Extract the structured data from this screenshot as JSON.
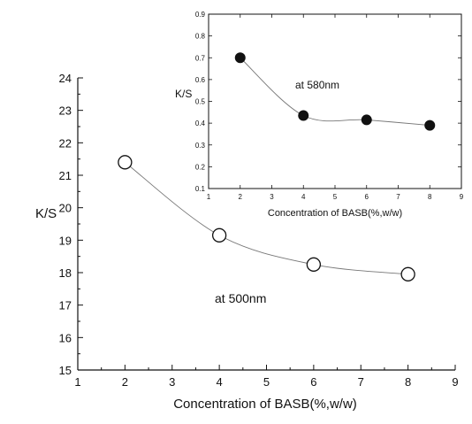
{
  "chart_data": [
    {
      "type": "scatter",
      "xlabel": "Concentration of BASB(%,w/w)",
      "ylabel": "K/S",
      "xlim": [
        1,
        9
      ],
      "ylim": [
        15,
        24
      ],
      "xticks": [
        "1",
        "2",
        "3",
        "4",
        "5",
        "6",
        "7",
        "8",
        "9"
      ],
      "yticks": [
        "15",
        "16",
        "17",
        "18",
        "19",
        "20",
        "21",
        "22",
        "23",
        "24"
      ],
      "annotation": "at 500nm",
      "marker": "open-circle",
      "smooth_curve": true,
      "series": [
        {
          "x": [
            2,
            4,
            6,
            8
          ],
          "y": [
            21.4,
            19.15,
            18.25,
            17.95
          ]
        }
      ]
    },
    {
      "type": "scatter",
      "xlabel": "Concentration of BASB(%,w/w)",
      "ylabel": "K/S",
      "xlim": [
        1,
        9
      ],
      "ylim": [
        0.1,
        0.9
      ],
      "xticks": [
        "1",
        "2",
        "3",
        "4",
        "5",
        "6",
        "7",
        "8",
        "9"
      ],
      "yticks": [
        "0.1",
        "0.2",
        "0.3",
        "0.4",
        "0.5",
        "0.6",
        "0.7",
        "0.8",
        "0.9"
      ],
      "annotation": "at 580nm",
      "marker": "filled-circle",
      "smooth_curve": true,
      "series": [
        {
          "x": [
            2,
            4,
            6,
            8
          ],
          "y": [
            0.7,
            0.435,
            0.415,
            0.39
          ]
        }
      ]
    }
  ]
}
